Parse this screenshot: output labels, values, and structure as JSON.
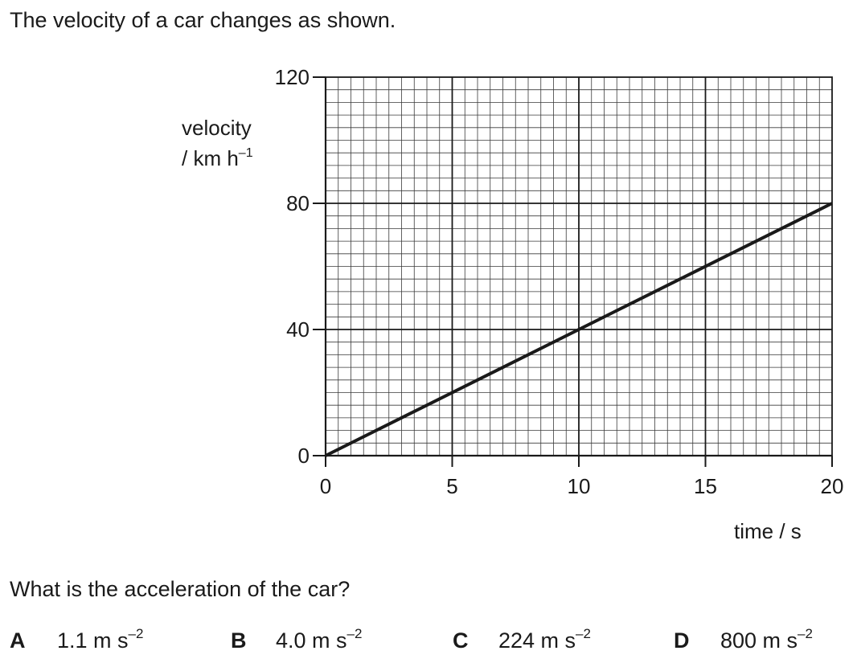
{
  "question": {
    "intro": "The velocity of a car changes as shown.",
    "prompt": "What is the acceleration of the car?"
  },
  "chart_data": {
    "type": "line",
    "title": "",
    "xlabel": "time / s",
    "ylabel_line1": "velocity",
    "ylabel_line2": "/ km h",
    "ylabel_exponent": "–1",
    "xlim": [
      0,
      20
    ],
    "ylim": [
      0,
      120
    ],
    "x_ticks": [
      0,
      5,
      10,
      15,
      20
    ],
    "y_ticks": [
      0,
      40,
      80,
      120
    ],
    "x_tick_labels": [
      "0",
      "5",
      "10",
      "15",
      "20"
    ],
    "y_tick_labels": [
      "0",
      "40",
      "80",
      "120"
    ],
    "grid": true,
    "grid_minor_x_step": 0.5,
    "grid_minor_y_step": 4,
    "grid_major_x_step": 5,
    "grid_major_y_step": 40,
    "series": [
      {
        "x": [
          0,
          20
        ],
        "y": [
          0,
          80
        ]
      }
    ]
  },
  "options": [
    {
      "letter": "A",
      "value": "1.1 m s",
      "exponent": "–2"
    },
    {
      "letter": "B",
      "value": "4.0 m s",
      "exponent": "–2"
    },
    {
      "letter": "C",
      "value": "224 m s",
      "exponent": "–2"
    },
    {
      "letter": "D",
      "value": "800 m s",
      "exponent": "–2"
    }
  ],
  "colors": {
    "ink": "#1a1a1a",
    "grid_minor": "#3a3a3a"
  }
}
